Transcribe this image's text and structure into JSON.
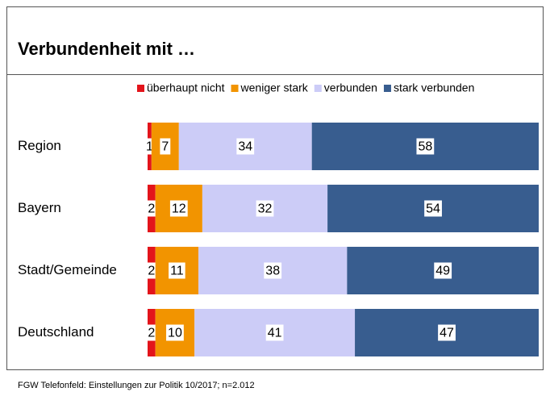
{
  "chart_data": {
    "type": "stacked_bar_horizontal",
    "title": "Verbundenheit mit …",
    "categories": [
      "Region",
      "Bayern",
      "Stadt/Gemeinde",
      "Deutschland"
    ],
    "series": [
      {
        "name": "überhaupt nicht",
        "color": "#e3141b",
        "values": [
          1,
          2,
          2,
          2
        ]
      },
      {
        "name": "weniger stark",
        "color": "#f29400",
        "values": [
          7,
          12,
          11,
          10
        ]
      },
      {
        "name": "verbunden",
        "color": "#ccccf7",
        "values": [
          34,
          32,
          38,
          41
        ]
      },
      {
        "name": "stark verbunden",
        "color": "#385d8f",
        "values": [
          58,
          54,
          49,
          47
        ]
      }
    ],
    "source": "FGW Telefonfeld: Einstellungen zur Politik 10/2017; n=2.012"
  }
}
